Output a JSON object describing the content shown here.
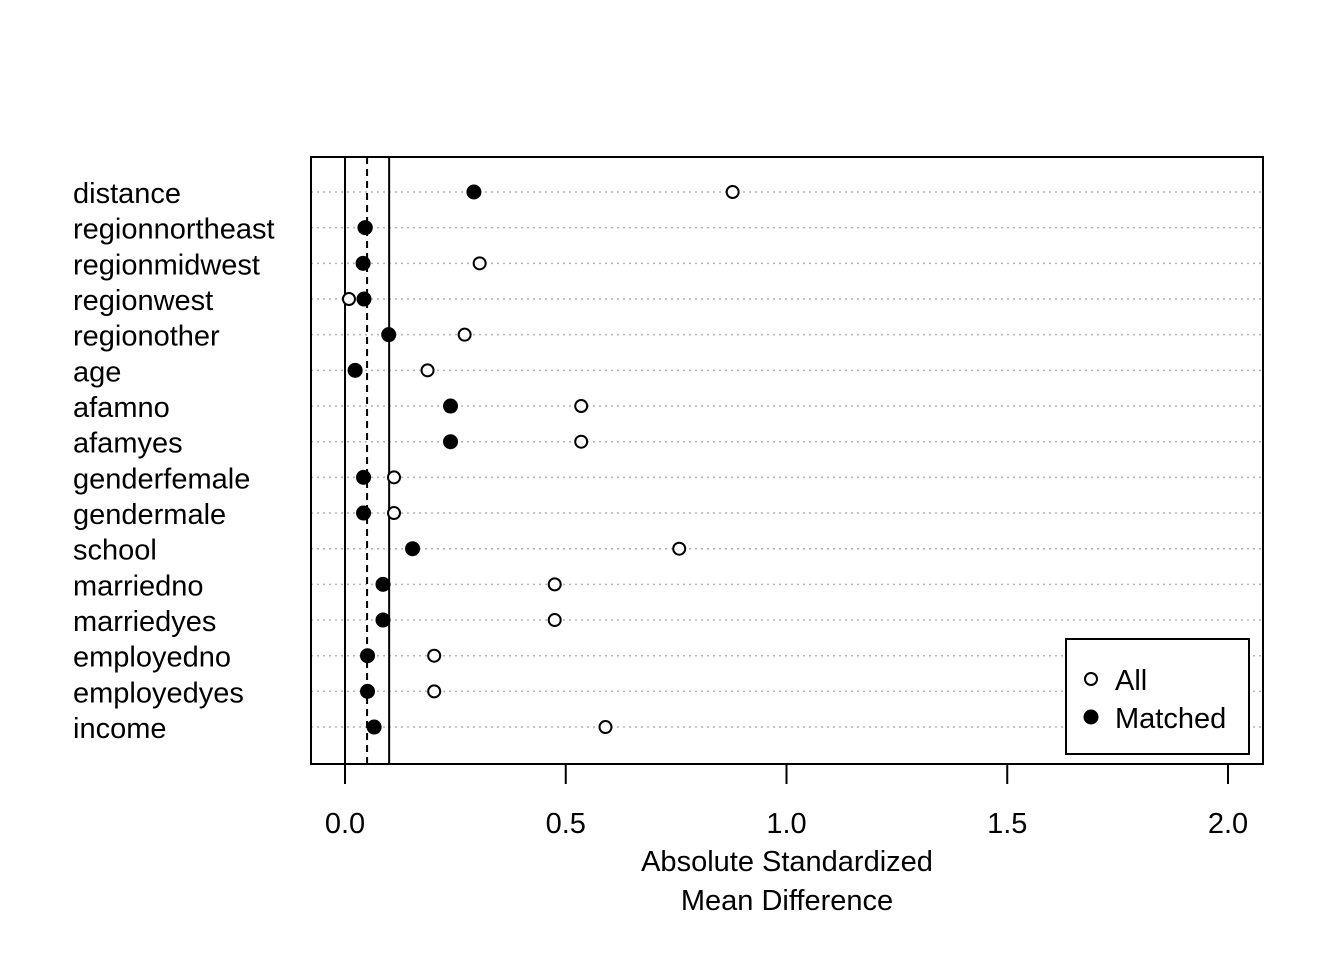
{
  "chart_data": {
    "type": "scatter",
    "xlabel": "Absolute Standardized\nMean Difference",
    "xlim": [
      0,
      2
    ],
    "xticks": [
      0.0,
      0.5,
      1.0,
      1.5,
      2.0
    ],
    "xtick_labels": [
      "0.0",
      "0.5",
      "1.0",
      "1.5",
      "2.0"
    ],
    "grid": "horizontal dotted",
    "reference_lines": [
      {
        "x": 0,
        "style": "solid"
      },
      {
        "x": 0.05,
        "style": "dashed"
      },
      {
        "x": 0.1,
        "style": "solid"
      }
    ],
    "categories": [
      "distance",
      "regionnortheast",
      "regionmidwest",
      "regionwest",
      "regionother",
      "age",
      "afamno",
      "afamyes",
      "genderfemale",
      "gendermale",
      "school",
      "marriedno",
      "marriedyes",
      "employedno",
      "employedyes",
      "income"
    ],
    "series": [
      {
        "name": "All",
        "marker": "open-circle",
        "values": [
          0.878,
          0.044,
          0.305,
          0.009,
          0.271,
          0.187,
          0.535,
          0.535,
          0.111,
          0.111,
          0.757,
          0.475,
          0.475,
          0.202,
          0.202,
          0.59
        ]
      },
      {
        "name": "Matched",
        "marker": "filled-circle",
        "values": [
          0.292,
          0.046,
          0.041,
          0.043,
          0.099,
          0.023,
          0.239,
          0.239,
          0.042,
          0.042,
          0.153,
          0.086,
          0.086,
          0.051,
          0.051,
          0.066
        ]
      }
    ],
    "legend": {
      "position": "bottom-right",
      "entries": [
        "All",
        "Matched"
      ]
    }
  }
}
